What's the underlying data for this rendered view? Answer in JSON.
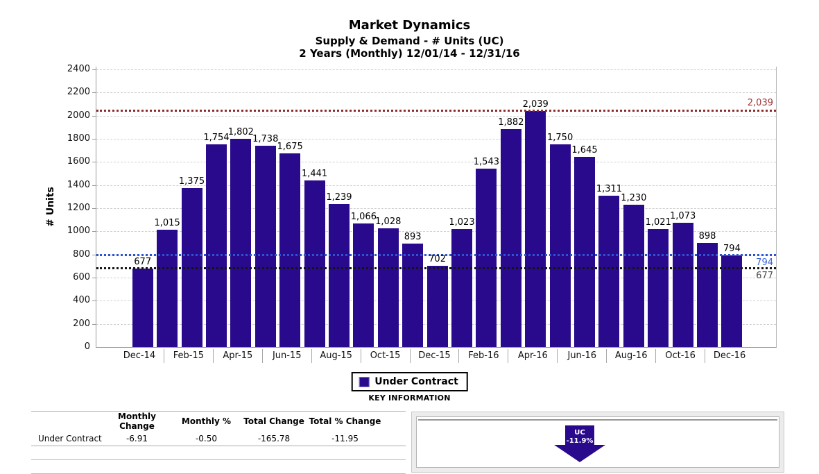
{
  "header": {
    "title": "Market Dynamics",
    "subtitle1": "Supply & Demand - # Units (UC)",
    "subtitle2": "2 Years (Monthly) 12/01/14 - 12/31/16"
  },
  "chart_data": {
    "type": "bar",
    "title": "Market Dynamics",
    "ylabel": "# Units",
    "ylim": [
      0,
      2400
    ],
    "ytick_step": 200,
    "grid": true,
    "bar_color": "#2a0a8c",
    "x": [
      "Dec-14",
      "Jan-15",
      "Feb-15",
      "Mar-15",
      "Apr-15",
      "May-15",
      "Jun-15",
      "Jul-15",
      "Aug-15",
      "Sep-15",
      "Oct-15",
      "Nov-15",
      "Dec-15",
      "Jan-16",
      "Feb-16",
      "Mar-16",
      "Apr-16",
      "May-16",
      "Jun-16",
      "Jul-16",
      "Aug-16",
      "Sep-16",
      "Oct-16",
      "Nov-16",
      "Dec-16"
    ],
    "values": [
      677,
      1015,
      1375,
      1754,
      1802,
      1738,
      1675,
      1441,
      1239,
      1066,
      1028,
      893,
      702,
      1023,
      1543,
      1882,
      2039,
      1750,
      1645,
      1311,
      1230,
      1021,
      1073,
      898,
      794
    ],
    "xtick_labels": [
      "Dec-14",
      "Feb-15",
      "Apr-15",
      "Jun-15",
      "Aug-15",
      "Oct-15",
      "Dec-15",
      "Feb-16",
      "Apr-16",
      "Jun-16",
      "Aug-16",
      "Oct-16",
      "Dec-16"
    ],
    "legend": {
      "label": "Under Contract",
      "position": "bottom"
    },
    "reference_lines": [
      {
        "name": "max",
        "value": 2039,
        "label": "2,039",
        "line_color": "#8f2a2a",
        "label_color": "#9e3434",
        "label_position": "above"
      },
      {
        "name": "current",
        "value": 794,
        "label": "794",
        "line_color": "#2d53d3",
        "label_color": "#3b62d9",
        "label_position": "below"
      },
      {
        "name": "start",
        "value": 677,
        "label": "677",
        "line_color": "#141414",
        "label_color": "#4d4d4d",
        "label_position": "below"
      }
    ]
  },
  "key_information": {
    "heading": "KEY INFORMATION",
    "table": {
      "columns": [
        "Monthly Change",
        "Monthly %",
        "Total Change",
        "Total % Change"
      ],
      "row_header": "Under Contract",
      "values": [
        "-6.91",
        "-0.50",
        "-165.78",
        "-11.95"
      ]
    },
    "indicator": {
      "label": "UC",
      "value": "-11.9%",
      "direction": "down",
      "color": "#2a0a8c"
    }
  }
}
